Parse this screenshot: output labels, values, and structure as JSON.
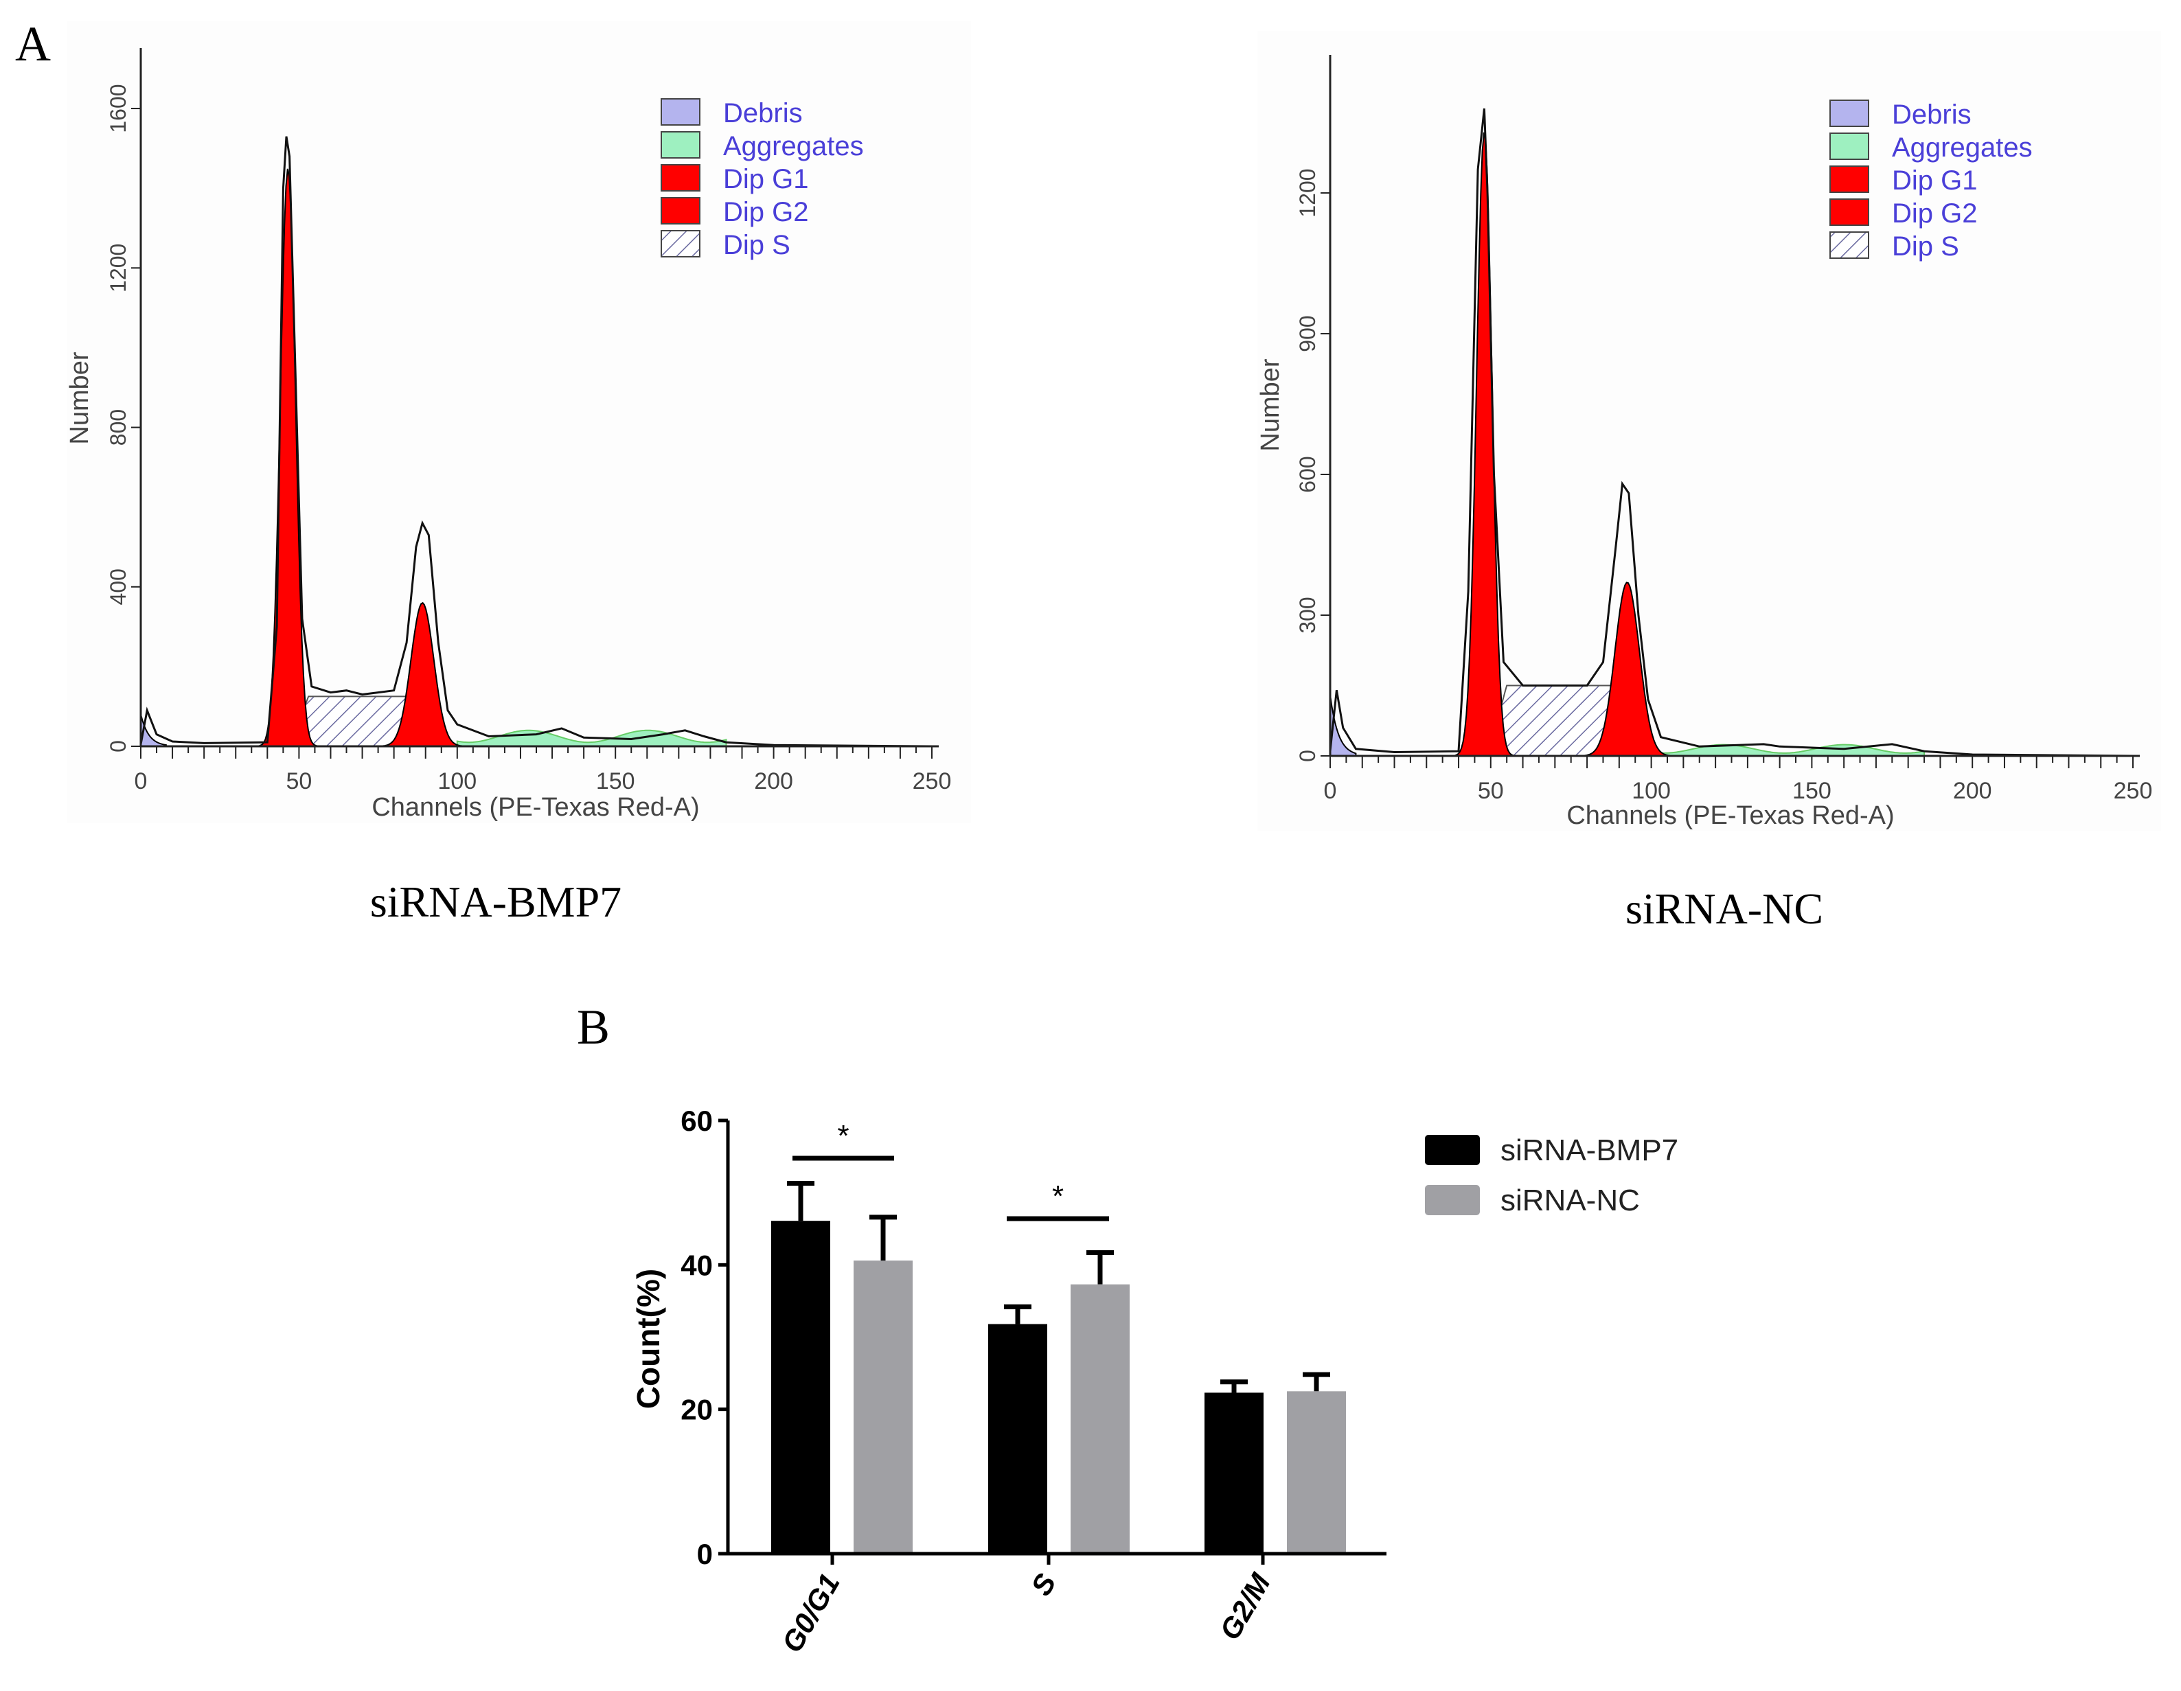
{
  "panel_labels": {
    "a": "A",
    "b": "B"
  },
  "colors": {
    "debris": "#b4b4ee",
    "aggregates": "#9ef0c0",
    "dip_g1": "#ff0000",
    "dip_g2": "#ff0000",
    "legend_text": "#4a3fd8",
    "bmp7": "#000000",
    "nc": "#a0a0a4"
  },
  "chart_data": [
    {
      "type": "area",
      "caption": "siRNA-BMP7",
      "xlabel": "Channels (PE-Texas Red-A)",
      "ylabel": "Number",
      "xlim": [
        0,
        250
      ],
      "ylim": [
        0,
        1750
      ],
      "xticks": [
        "0",
        "50",
        "100",
        "150",
        "200",
        "250"
      ],
      "yticks": [
        "0",
        "400",
        "800",
        "1200",
        "1600"
      ],
      "ytick_values": [
        0,
        400,
        800,
        1200,
        1600
      ],
      "legend": [
        "Debris",
        "Aggregates",
        "Dip G1",
        "Dip G2",
        "Dip S"
      ],
      "legend_position": "top-right",
      "total_curve": [
        [
          0,
          5
        ],
        [
          2,
          90
        ],
        [
          5,
          30
        ],
        [
          10,
          12
        ],
        [
          20,
          8
        ],
        [
          40,
          10
        ],
        [
          43,
          300
        ],
        [
          45,
          1400
        ],
        [
          46,
          1530
        ],
        [
          47,
          1480
        ],
        [
          49,
          900
        ],
        [
          51,
          320
        ],
        [
          54,
          150
        ],
        [
          60,
          135
        ],
        [
          65,
          140
        ],
        [
          70,
          130
        ],
        [
          75,
          135
        ],
        [
          80,
          140
        ],
        [
          84,
          260
        ],
        [
          87,
          500
        ],
        [
          89,
          560
        ],
        [
          91,
          530
        ],
        [
          94,
          260
        ],
        [
          97,
          90
        ],
        [
          100,
          55
        ],
        [
          110,
          25
        ],
        [
          125,
          30
        ],
        [
          133,
          45
        ],
        [
          140,
          22
        ],
        [
          155,
          18
        ],
        [
          165,
          30
        ],
        [
          172,
          40
        ],
        [
          178,
          25
        ],
        [
          185,
          10
        ],
        [
          200,
          3
        ],
        [
          250,
          0
        ]
      ],
      "components": {
        "debris": {
          "from": 0,
          "to": 8,
          "peak": 80
        },
        "g1": {
          "mean": 46.5,
          "sd": 2.4,
          "peak": 1450
        },
        "g2": {
          "mean": 89,
          "sd": 3.6,
          "peak": 360
        },
        "s": {
          "from": 47,
          "to": 92,
          "level": 125
        },
        "aggregates": {
          "from": 100,
          "to": 185,
          "level": 25
        }
      }
    },
    {
      "type": "area",
      "caption": "siRNA-NC",
      "xlabel": "Channels (PE-Texas Red-A)",
      "ylabel": "Number",
      "xlim": [
        0,
        250
      ],
      "ylim": [
        0,
        1450
      ],
      "xticks": [
        "0",
        "50",
        "100",
        "150",
        "200",
        "250"
      ],
      "yticks": [
        "0",
        "300",
        "600",
        "900",
        "1200"
      ],
      "ytick_values": [
        0,
        300,
        600,
        900,
        1200
      ],
      "legend": [
        "Debris",
        "Aggregates",
        "Dip G1",
        "Dip G2",
        "Dip S"
      ],
      "legend_position": "top-right",
      "total_curve": [
        [
          0,
          10
        ],
        [
          2,
          140
        ],
        [
          4,
          60
        ],
        [
          8,
          15
        ],
        [
          20,
          8
        ],
        [
          40,
          10
        ],
        [
          43,
          350
        ],
        [
          46,
          1250
        ],
        [
          48,
          1380
        ],
        [
          49,
          1200
        ],
        [
          51,
          600
        ],
        [
          54,
          200
        ],
        [
          60,
          150
        ],
        [
          70,
          150
        ],
        [
          80,
          150
        ],
        [
          85,
          200
        ],
        [
          89,
          450
        ],
        [
          91,
          580
        ],
        [
          93,
          560
        ],
        [
          96,
          300
        ],
        [
          99,
          120
        ],
        [
          103,
          40
        ],
        [
          115,
          20
        ],
        [
          135,
          25
        ],
        [
          140,
          20
        ],
        [
          160,
          15
        ],
        [
          175,
          25
        ],
        [
          185,
          10
        ],
        [
          200,
          3
        ],
        [
          250,
          0
        ]
      ],
      "components": {
        "debris": {
          "from": 0,
          "to": 8,
          "peak": 130
        },
        "g1": {
          "mean": 48,
          "sd": 2.4,
          "peak": 1330
        },
        "g2": {
          "mean": 92.5,
          "sd": 3.8,
          "peak": 370
        },
        "s": {
          "from": 49,
          "to": 96,
          "level": 150
        },
        "aggregates": {
          "from": 103,
          "to": 185,
          "level": 15
        }
      }
    },
    {
      "type": "bar",
      "ylabel": "Count(%)",
      "xlabel": "",
      "ylim": [
        0,
        60
      ],
      "yticks": [
        "0",
        "20",
        "40",
        "60"
      ],
      "ytick_values": [
        0,
        20,
        40,
        60
      ],
      "categories": [
        "G0/G1",
        "S",
        "G2/M"
      ],
      "series": [
        {
          "name": "siRNA-BMP7",
          "values": [
            46.1,
            31.8,
            22.3
          ],
          "error_upper": [
            51.3,
            34.2,
            23.8
          ]
        },
        {
          "name": "siRNA-NC",
          "values": [
            40.6,
            37.3,
            22.5
          ],
          "error_upper": [
            46.6,
            41.7,
            24.8
          ]
        }
      ],
      "significance": [
        {
          "category": "G0/G1",
          "label": "*"
        },
        {
          "category": "S",
          "label": "*"
        }
      ],
      "legend_position": "top-right"
    }
  ]
}
